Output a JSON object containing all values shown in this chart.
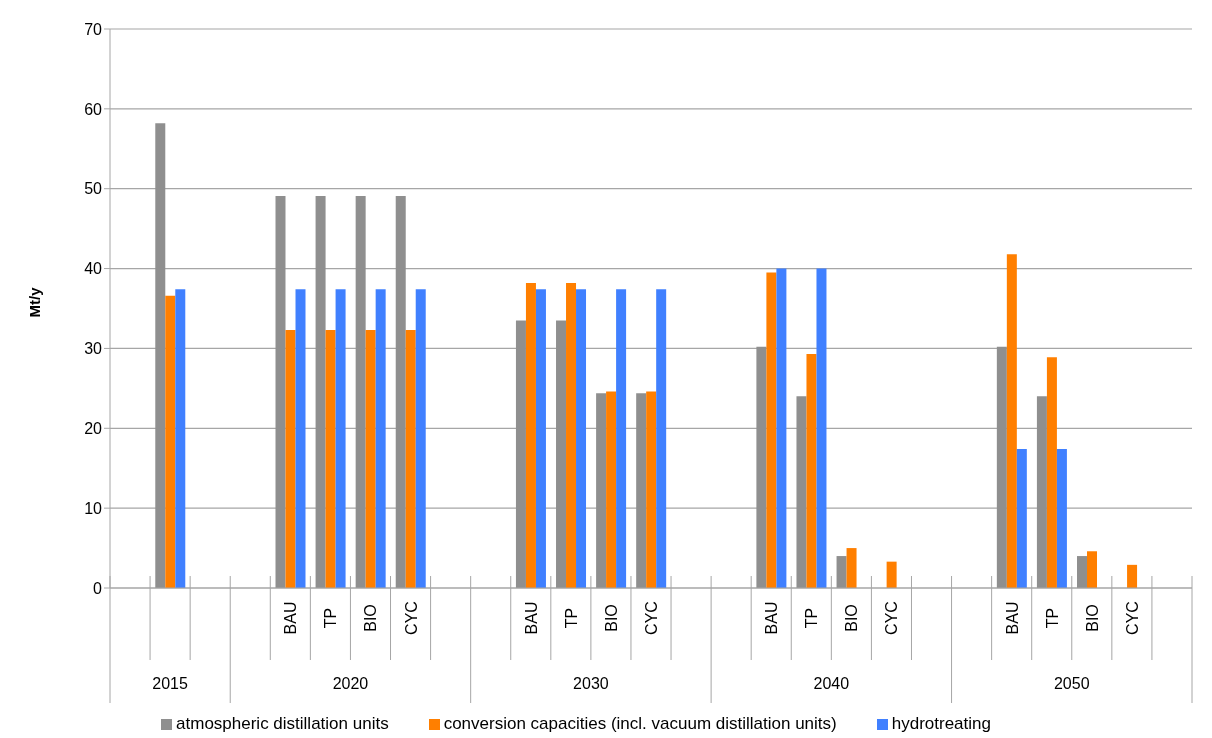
{
  "chart_data": {
    "type": "bar",
    "categories": [
      null,
      null,
      null,
      null,
      "BAU",
      "TP",
      "BIO",
      "CYC",
      null,
      null,
      "BAU",
      "TP",
      "BIO",
      "CYC",
      null,
      null,
      "BAU",
      "TP",
      "BIO",
      "CYC",
      null,
      null,
      "BAU",
      "TP",
      "BIO",
      "CYC",
      null
    ],
    "series": [
      {
        "name": "atmospheric distillation units",
        "color": "#8f8f8f",
        "values": [
          null,
          58.2,
          null,
          null,
          49.1,
          49.1,
          49.1,
          49.1,
          null,
          null,
          33.5,
          33.5,
          24.4,
          24.4,
          null,
          null,
          30.2,
          24.0,
          4.0,
          0,
          null,
          null,
          30.2,
          24.0,
          4.0,
          0,
          null
        ]
      },
      {
        "name": "conversion capacities (incl. vacuum distillation units)",
        "color": "#ff7f00",
        "values": [
          null,
          36.6,
          null,
          null,
          32.3,
          32.3,
          32.3,
          32.3,
          null,
          null,
          38.2,
          38.2,
          24.6,
          24.6,
          null,
          null,
          39.5,
          29.3,
          5.0,
          3.3,
          null,
          null,
          41.8,
          28.9,
          4.6,
          2.9,
          null
        ]
      },
      {
        "name": "hydrotreating",
        "color": "#4080ff",
        "values": [
          null,
          37.4,
          null,
          null,
          37.4,
          37.4,
          37.4,
          37.4,
          null,
          null,
          37.4,
          37.4,
          37.4,
          37.4,
          null,
          null,
          40.0,
          40.0,
          0,
          0,
          null,
          null,
          17.4,
          17.4,
          0,
          0,
          null
        ]
      }
    ],
    "annotations": [
      "2015",
      "2020",
      "2030",
      "2040",
      "2050"
    ],
    "ylabel": "Mt/y",
    "ylim": [
      0,
      70
    ],
    "yticks": [
      0,
      10,
      20,
      30,
      40,
      50,
      60,
      70
    ],
    "grid": "y",
    "legend": "bottom"
  }
}
